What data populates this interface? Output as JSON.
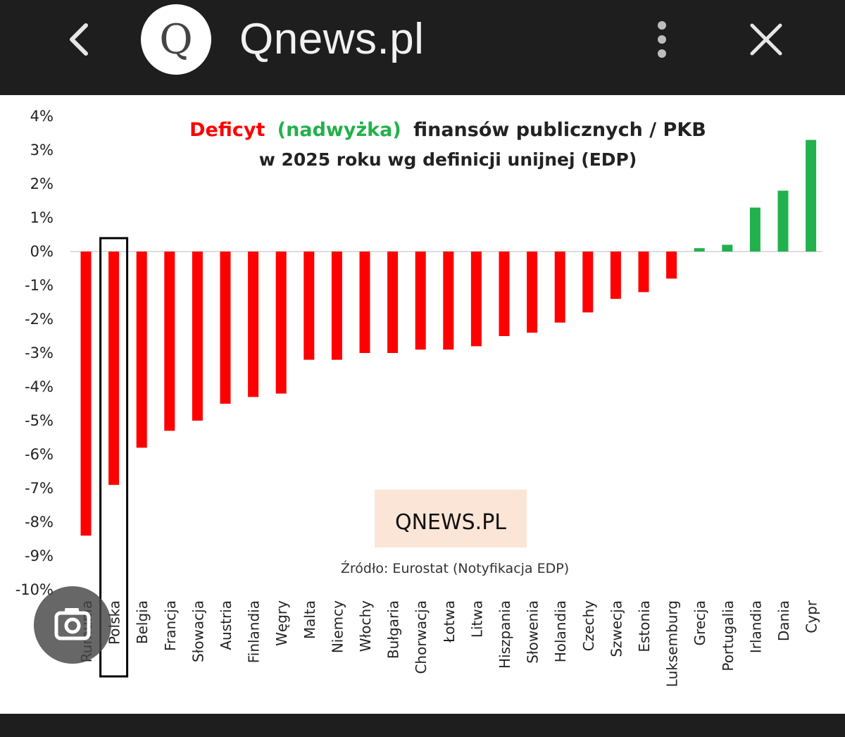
{
  "header": {
    "site_title": "Qnews.pl",
    "favicon_letter": "Q",
    "back_icon": "chevron-left-icon",
    "menu_icon": "more-vert-icon",
    "close_icon": "close-icon"
  },
  "colors": {
    "deficit": "#ff0000",
    "surplus": "#22b14c",
    "topbar": "#1e1e1e"
  },
  "chart_data": {
    "type": "bar",
    "title_parts": [
      "Deficyt",
      "(nadwyżka)",
      "finansów publicznych  / PKB"
    ],
    "subtitle": "w 2025 roku wg definicji unijnej  (EDP)",
    "source": "Źródło: Eurostat (Notyfikacja EDP)",
    "logo_text": "QNEWS.PL",
    "ylim": [
      -10,
      4
    ],
    "yticks": [
      "4%",
      "3%",
      "2%",
      "1%",
      "0%",
      "-1%",
      "-2%",
      "-3%",
      "-4%",
      "-5%",
      "-6%",
      "-7%",
      "-8%",
      "-9%",
      "-10%"
    ],
    "categories": [
      "Rumunia",
      "Polska",
      "Belgia",
      "Francja",
      "Słowacja",
      "Austria",
      "Finlandia",
      "Węgry",
      "Malta",
      "Niemcy",
      "Włochy",
      "Bułgaria",
      "Chorwacja",
      "Łotwa",
      "Litwa",
      "Hiszpania",
      "Słowenia",
      "Holandia",
      "Czechy",
      "Szwecja",
      "Estonia",
      "Luksemburg",
      "Grecja",
      "Portugalia",
      "Irlandia",
      "Dania",
      "Cypr"
    ],
    "values": [
      -8.4,
      -6.9,
      -5.8,
      -5.3,
      -5.0,
      -4.5,
      -4.3,
      -4.2,
      -3.2,
      -3.2,
      -3.0,
      -3.0,
      -2.9,
      -2.9,
      -2.8,
      -2.5,
      -2.4,
      -2.1,
      -1.8,
      -1.4,
      -1.2,
      -0.8,
      0.1,
      0.2,
      1.3,
      1.8,
      3.3
    ],
    "highlighted": "Polska",
    "grid": false,
    "legend": "none"
  }
}
